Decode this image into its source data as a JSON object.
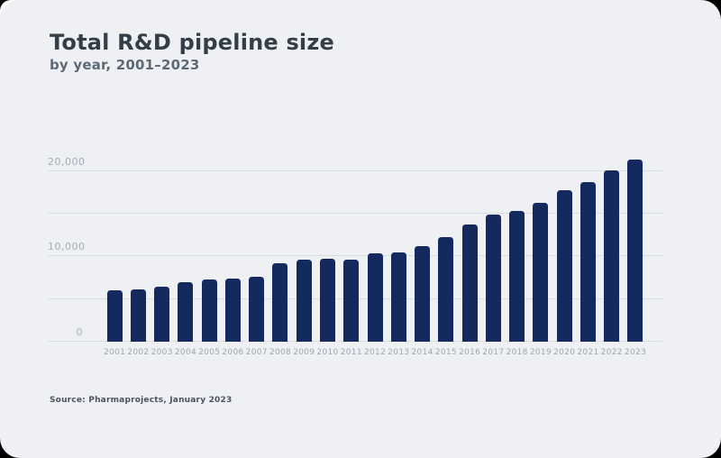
{
  "card": {
    "title": "Total R&D pipeline size",
    "subtitle": "by year, 2001–2023",
    "source": "Source: Pharmaprojects, January 2023"
  },
  "colors": {
    "page_bg": "#000000",
    "corner_accent": "#ffffff",
    "card_bg": "#eef0f4",
    "bar": "#14295e",
    "title_text": "#333e48",
    "subtitle_text": "#5d6a76",
    "axis_label": "#a4abb5",
    "gridline": "#d9dce3",
    "source_text": "#49535e"
  },
  "chart_data": {
    "type": "bar",
    "title": "Total R&D pipeline size",
    "subtitle": "by year, 2001–2023",
    "xlabel": "",
    "ylabel": "",
    "ylim": [
      0,
      22400
    ],
    "grid": true,
    "legend": false,
    "yticks": [
      {
        "value": 0,
        "label": "0"
      },
      {
        "value": 5000,
        "label": ""
      },
      {
        "value": 10000,
        "label": "10,000"
      },
      {
        "value": 15000,
        "label": ""
      },
      {
        "value": 20000,
        "label": "20,000"
      }
    ],
    "categories": [
      "2001",
      "2002",
      "2003",
      "2004",
      "2005",
      "2006",
      "2007",
      "2008",
      "2009",
      "2010",
      "2011",
      "2012",
      "2013",
      "2014",
      "2015",
      "2016",
      "2017",
      "2018",
      "2019",
      "2020",
      "2021",
      "2022",
      "2023"
    ],
    "values": [
      6000,
      6150,
      6400,
      7000,
      7250,
      7400,
      7650,
      9200,
      9600,
      9700,
      9650,
      10400,
      10450,
      11250,
      12300,
      13750,
      14900,
      15350,
      16250,
      17800,
      18700,
      20100,
      21300
    ]
  }
}
